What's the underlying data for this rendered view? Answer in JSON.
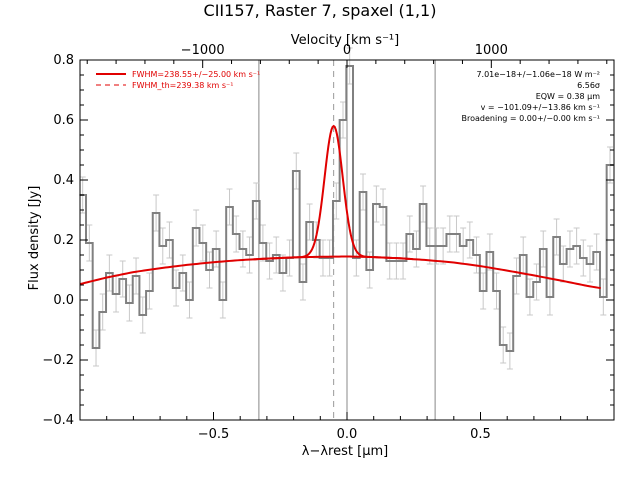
{
  "chart_data": {
    "type": "line",
    "title": "CII157, Raster 7, spaxel (1,1)",
    "xlabel": "λ−λrest [µm]",
    "ylabel": "Flux density [Jy]",
    "top_xlabel": "Velocity [km s⁻¹]",
    "xlim": [
      -1.0,
      1.0
    ],
    "ylim": [
      -0.4,
      0.8
    ],
    "x_ticks": [
      -0.5,
      0.0,
      0.5
    ],
    "x_tick_labels": [
      "−0.5",
      "0.0",
      "0.5"
    ],
    "y_ticks": [
      -0.4,
      -0.2,
      0.0,
      0.2,
      0.4,
      0.6,
      0.8
    ],
    "y_tick_labels": [
      "−0.4",
      "−0.2",
      "0.0",
      "0.2",
      "0.4",
      "0.6",
      "0.8"
    ],
    "top_ticks_velocity": [
      -1000,
      0,
      1000
    ],
    "top_tick_labels": [
      "−1000",
      "0",
      "1000"
    ],
    "velocity_per_micron": 1850,
    "vertical_lines_x": [
      -0.33,
      0.0,
      0.33
    ],
    "dashed_line_x": -0.05,
    "legend": [
      {
        "label": "FWHM=238.55+/−25.00 km s⁻¹",
        "style": "solid",
        "color": "#e00000"
      },
      {
        "label": "FWHM_th=239.38 km s⁻¹",
        "style": "dashed",
        "color": "#e00000"
      }
    ],
    "annotations": [
      "7.01e−18+/−1.06e−18 W m⁻²",
      "6.56σ",
      "EQW = 0.38 µm",
      "v = −101.09+/−13.86 km s⁻¹",
      "Broadening = 0.00+/−0.00 km s⁻¹"
    ],
    "series": [
      {
        "style": "step",
        "color": "#808080",
        "x": [
          -0.99,
          -0.965,
          -0.94,
          -0.915,
          -0.89,
          -0.865,
          -0.84,
          -0.815,
          -0.79,
          -0.765,
          -0.74,
          -0.715,
          -0.69,
          -0.665,
          -0.64,
          -0.615,
          -0.59,
          -0.565,
          -0.54,
          -0.515,
          -0.49,
          -0.465,
          -0.44,
          -0.415,
          -0.39,
          -0.365,
          -0.34,
          -0.315,
          -0.29,
          -0.265,
          -0.24,
          -0.215,
          -0.19,
          -0.165,
          -0.14,
          -0.115,
          -0.09,
          -0.065,
          -0.04,
          -0.015,
          0.01,
          0.035,
          0.06,
          0.085,
          0.11,
          0.135,
          0.16,
          0.185,
          0.21,
          0.235,
          0.26,
          0.285,
          0.31,
          0.335,
          0.36,
          0.385,
          0.41,
          0.435,
          0.46,
          0.485,
          0.51,
          0.535,
          0.56,
          0.585,
          0.61,
          0.635,
          0.66,
          0.685,
          0.71,
          0.735,
          0.76,
          0.785,
          0.81,
          0.835,
          0.86,
          0.885,
          0.91,
          0.935,
          0.96,
          0.985
        ],
        "values": [
          0.35,
          0.19,
          -0.16,
          -0.04,
          0.09,
          0.02,
          0.07,
          -0.01,
          0.08,
          -0.05,
          0.03,
          0.29,
          0.18,
          0.2,
          0.04,
          0.09,
          0.0,
          0.24,
          0.19,
          0.1,
          0.17,
          0.0,
          0.31,
          0.22,
          0.17,
          0.15,
          0.33,
          0.19,
          0.13,
          0.15,
          0.09,
          0.14,
          0.43,
          0.06,
          0.26,
          0.2,
          0.14,
          0.14,
          0.33,
          0.6,
          0.78,
          0.14,
          0.36,
          0.1,
          0.32,
          0.31,
          0.13,
          0.13,
          0.13,
          0.22,
          0.17,
          0.32,
          0.18,
          0.18,
          0.18,
          0.22,
          0.22,
          0.18,
          0.2,
          0.15,
          0.03,
          0.16,
          0.03,
          -0.15,
          -0.17,
          0.08,
          0.15,
          0.01,
          0.06,
          0.17,
          0.01,
          0.21,
          0.12,
          0.17,
          0.18,
          0.14,
          0.12,
          0.16,
          0.01,
          0.45
        ],
        "errors": 0.06
      },
      {
        "style": "smooth",
        "color": "#e00000",
        "x": [
          -1.0,
          -0.9,
          -0.8,
          -0.7,
          -0.6,
          -0.5,
          -0.4,
          -0.3,
          -0.2,
          -0.1,
          0.0,
          0.1,
          0.2,
          0.3,
          0.4,
          0.5,
          0.6,
          0.7,
          0.8,
          0.9,
          0.96
        ],
        "values": [
          0.053,
          0.075,
          0.093,
          0.106,
          0.117,
          0.126,
          0.133,
          0.138,
          0.142,
          0.144,
          0.145,
          0.143,
          0.139,
          0.133,
          0.125,
          0.113,
          0.098,
          0.082,
          0.065,
          0.047,
          0.038
        ]
      },
      {
        "style": "gaussian_line",
        "color": "#e00000",
        "center": -0.05,
        "peak": 0.58,
        "sigma": 0.034,
        "baseline": "continuum"
      }
    ]
  }
}
